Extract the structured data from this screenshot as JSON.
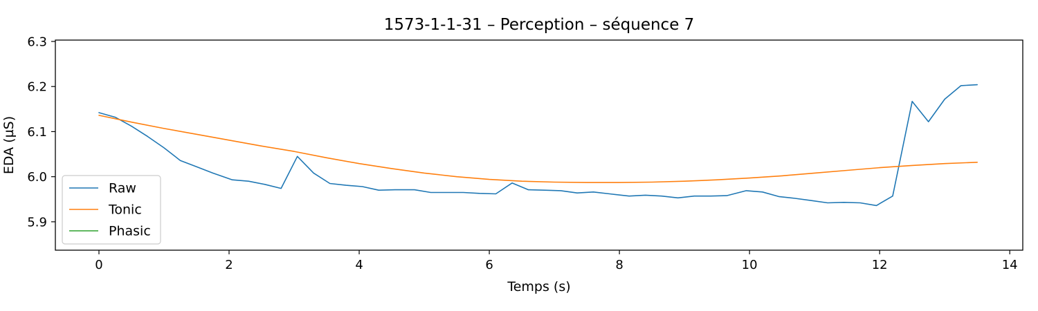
{
  "chart_data": {
    "type": "line",
    "title": "1573-1-1-31 – Perception – séquence 7",
    "xlabel": "Temps (s)",
    "ylabel": "EDA (µS)",
    "xlim": [
      -0.67,
      14.2
    ],
    "ylim": [
      5.837,
      6.303
    ],
    "xticks": [
      0,
      2,
      4,
      6,
      8,
      10,
      12,
      14
    ],
    "xtick_labels": [
      "0",
      "2",
      "4",
      "6",
      "8",
      "10",
      "12",
      "14"
    ],
    "yticks": [
      5.9,
      6.0,
      6.1,
      6.2,
      6.3
    ],
    "ytick_labels": [
      "5.9",
      "6.0",
      "6.1",
      "6.2",
      "6.3"
    ],
    "grid": false,
    "legend_position": "lower-left",
    "series": [
      {
        "name": "Raw",
        "color": "#1f77b4",
        "x": [
          0,
          0.25,
          0.5,
          0.75,
          1.0,
          1.25,
          1.5,
          1.75,
          2.05,
          2.3,
          2.55,
          2.8,
          3.05,
          3.3,
          3.55,
          3.8,
          4.05,
          4.3,
          4.55,
          4.85,
          5.1,
          5.35,
          5.6,
          5.85,
          6.1,
          6.35,
          6.6,
          6.85,
          7.1,
          7.35,
          7.6,
          7.85,
          8.15,
          8.4,
          8.65,
          8.9,
          9.15,
          9.4,
          9.65,
          9.95,
          10.2,
          10.45,
          10.7,
          10.95,
          11.2,
          11.45,
          11.7,
          11.95,
          12.2,
          12.5,
          12.75,
          13.0,
          13.25,
          13.5
        ],
        "y": [
          6.142,
          6.132,
          6.112,
          6.089,
          6.064,
          6.036,
          6.022,
          6.008,
          5.993,
          5.99,
          5.983,
          5.974,
          6.045,
          6.008,
          5.985,
          5.981,
          5.978,
          5.97,
          5.971,
          5.971,
          5.965,
          5.965,
          5.965,
          5.963,
          5.962,
          5.986,
          5.971,
          5.97,
          5.969,
          5.964,
          5.966,
          5.962,
          5.957,
          5.959,
          5.957,
          5.953,
          5.957,
          5.957,
          5.958,
          5.969,
          5.966,
          5.956,
          5.952,
          5.947,
          5.942,
          5.943,
          5.942,
          5.936,
          5.957,
          6.167,
          6.122,
          6.172,
          6.202,
          6.204
        ]
      },
      {
        "name": "Tonic",
        "color": "#ff7f0e",
        "x": [
          0,
          0.5,
          1.0,
          1.5,
          2.0,
          2.5,
          3.0,
          3.5,
          4.0,
          4.5,
          5.0,
          5.5,
          6.0,
          6.5,
          7.0,
          7.5,
          8.0,
          8.5,
          9.0,
          9.5,
          10.0,
          10.5,
          11.0,
          11.5,
          12.0,
          12.5,
          13.0,
          13.5
        ],
        "y": [
          6.136,
          6.121,
          6.107,
          6.094,
          6.081,
          6.068,
          6.056,
          6.042,
          6.029,
          6.018,
          6.008,
          6.0,
          5.994,
          5.99,
          5.988,
          5.987,
          5.987,
          5.988,
          5.99,
          5.993,
          5.997,
          6.002,
          6.008,
          6.014,
          6.02,
          6.025,
          6.029,
          6.032
        ]
      },
      {
        "name": "Phasic",
        "color": "#2ca02c",
        "x": [],
        "y": []
      }
    ]
  }
}
